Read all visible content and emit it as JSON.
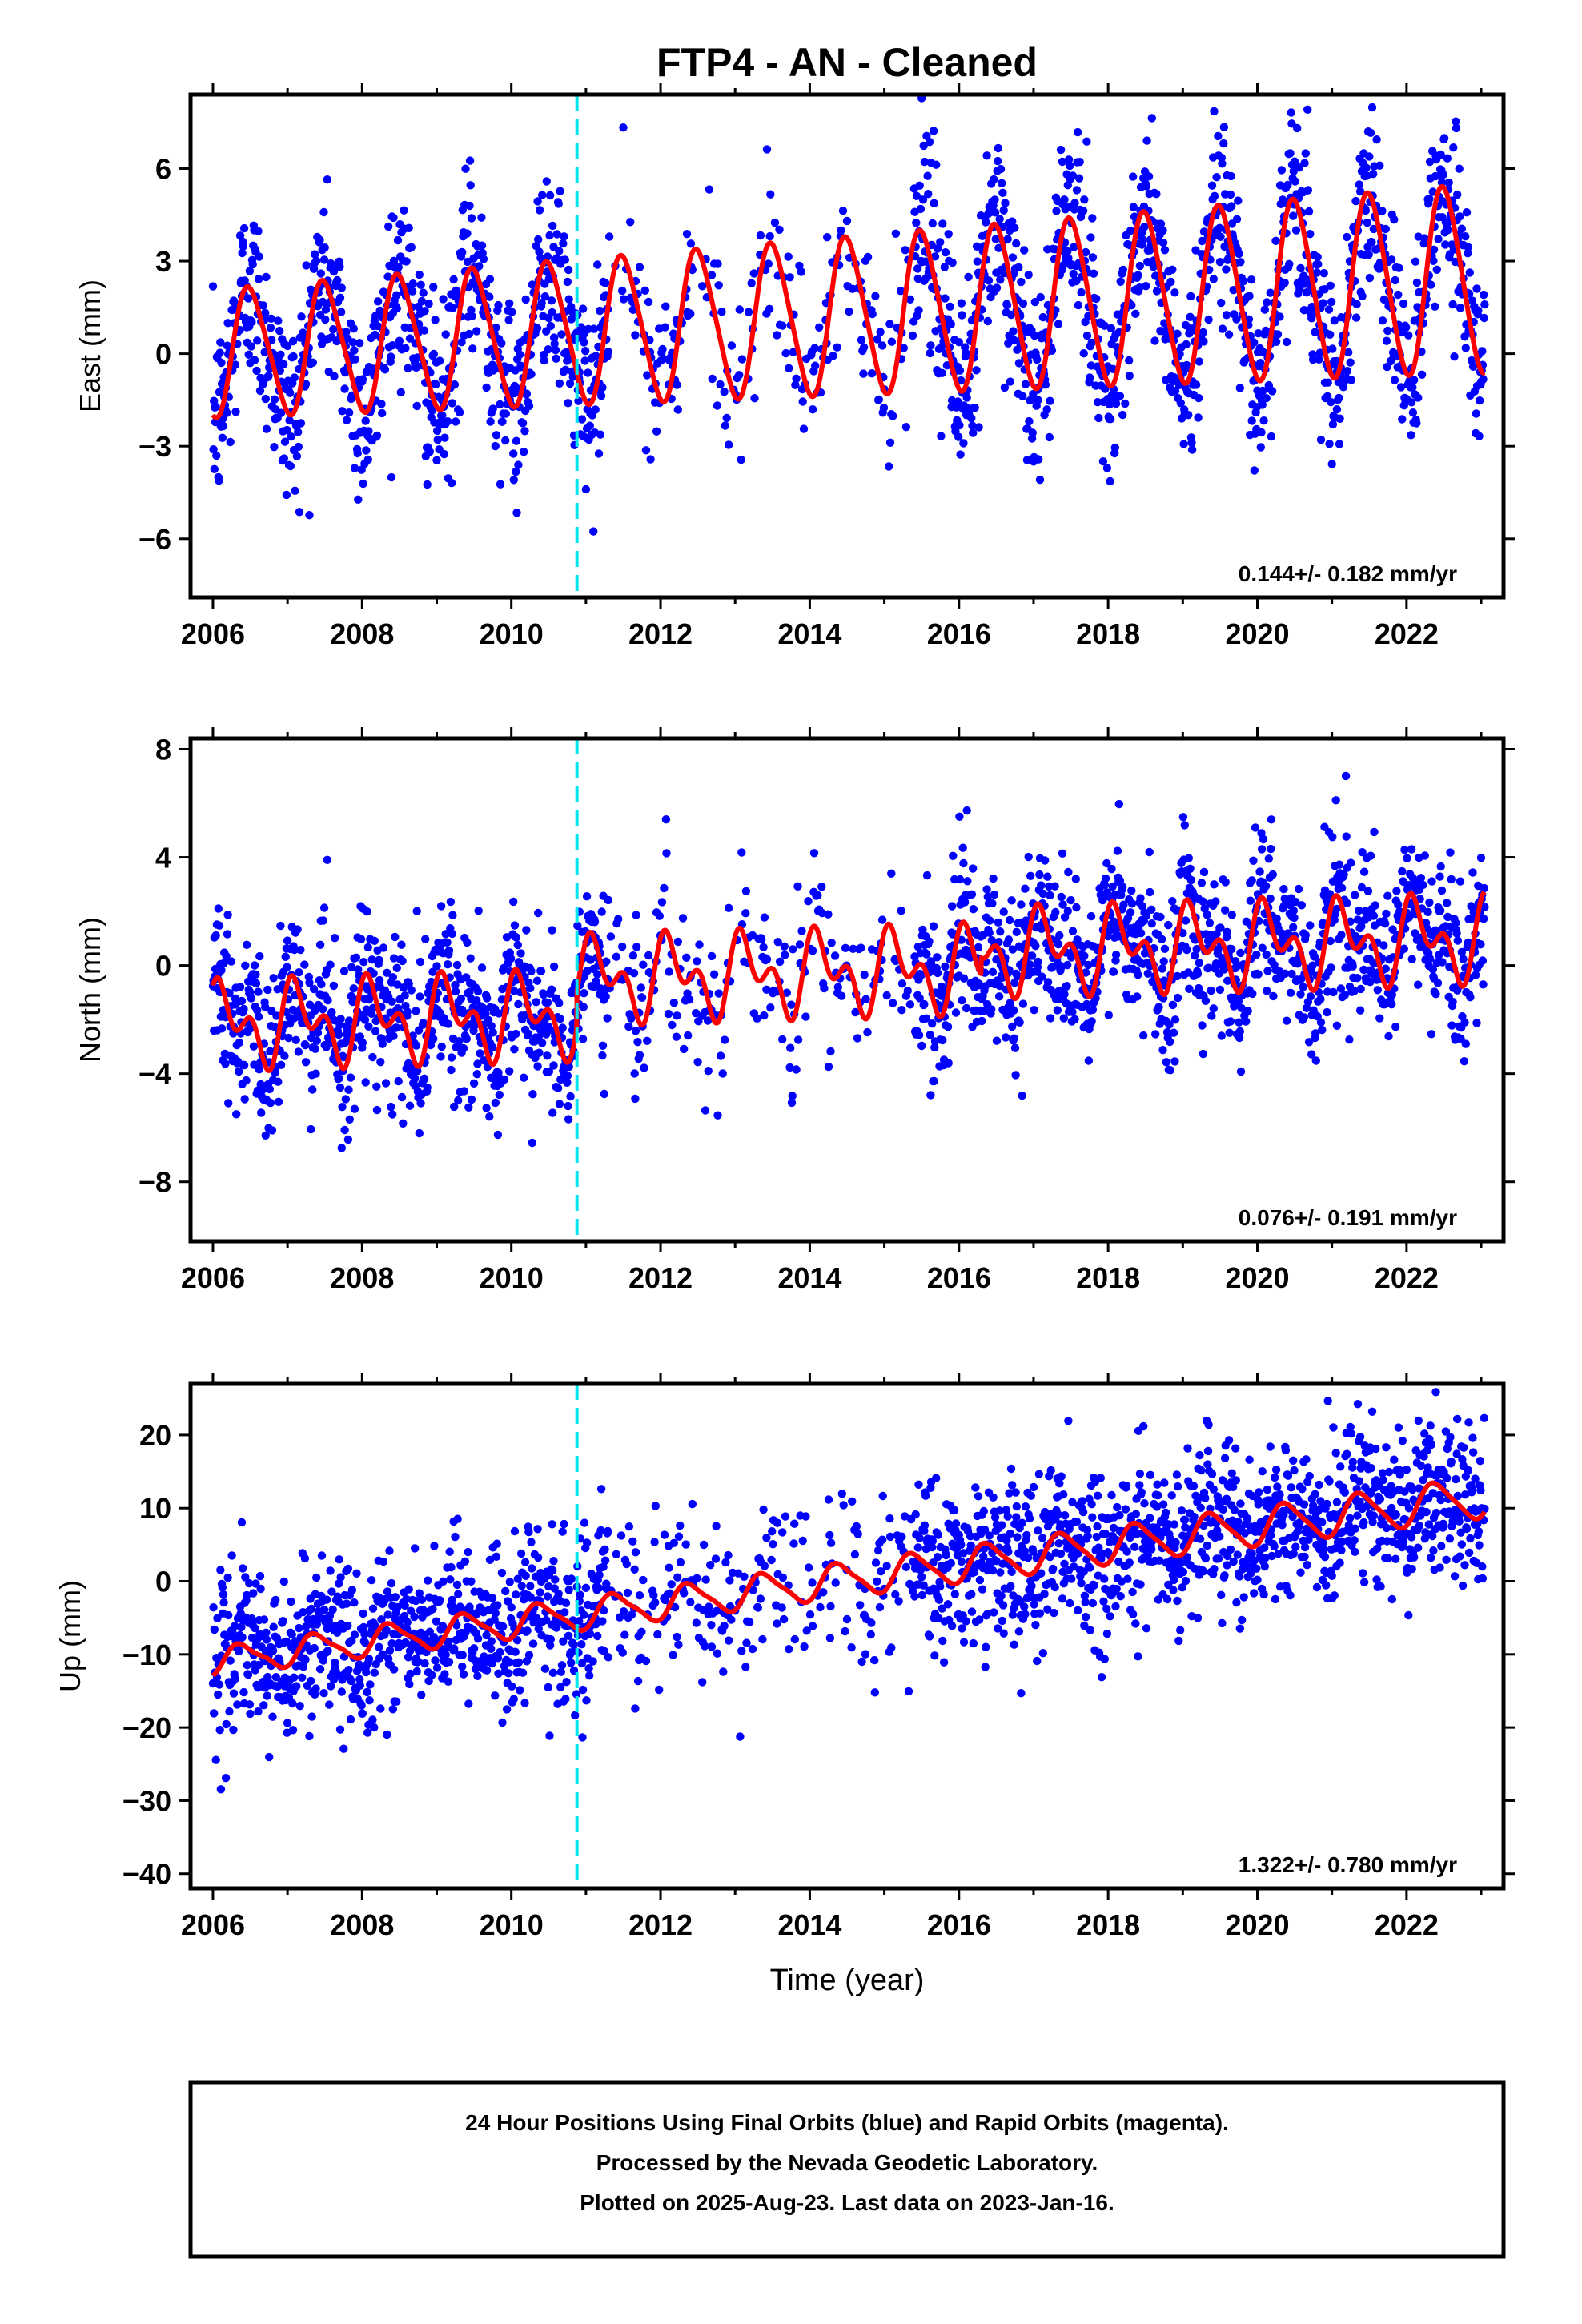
{
  "title": "FTP4  - AN - Cleaned",
  "xlabel": "Time (year)",
  "footer": {
    "line1": "24 Hour Positions Using Final Orbits (blue) and Rapid Orbits (magenta).",
    "line2": "Processed by the Nevada Geodetic Laboratory.",
    "line3": "Plotted on 2025-Aug-23. Last data on 2023-Jan-16."
  },
  "colors": {
    "points": "#0000ff",
    "model": "#ff0000",
    "event_line": "#00e5ee",
    "frame": "#000000"
  },
  "chart_data": [
    {
      "type": "scatter",
      "panel": "east",
      "ylabel": "East (mm)",
      "rate_text": "0.144+/- 0.182 mm/yr",
      "xlim": [
        2005.7,
        2023.3
      ],
      "ylim": [
        -7.9,
        8.4
      ],
      "xticks": [
        2006,
        2008,
        2010,
        2012,
        2014,
        2016,
        2018,
        2020,
        2022
      ],
      "yticks": [
        -6,
        -3,
        0,
        3,
        6
      ],
      "ytick_labels": [
        "−6",
        "−3",
        "0",
        "3",
        "6"
      ],
      "event_line_x": 2010.88,
      "model": {
        "offset": 0.0,
        "trend": 0.144,
        "amp_annual": 2.0,
        "amp_growth": 0.03,
        "phase": -1.6,
        "semi_amp": 0.3,
        "base_year": 2006
      },
      "points_model": {
        "noise": 1.5,
        "density_per_year": 150,
        "gaps": [
          [
            2011.3,
            2015.4
          ]
        ],
        "sparse_density": 12
      },
      "series": [
        {
          "name": "24 Hour Positions (Final Orbits)",
          "kind": "points"
        },
        {
          "name": "Model fit",
          "kind": "line"
        }
      ]
    },
    {
      "type": "scatter",
      "panel": "north",
      "ylabel": "North (mm)",
      "rate_text": "0.076+/- 0.191 mm/yr",
      "xlim": [
        2005.7,
        2023.3
      ],
      "ylim": [
        -10.2,
        8.4
      ],
      "xticks": [
        2006,
        2008,
        2010,
        2012,
        2014,
        2016,
        2018,
        2020,
        2022
      ],
      "yticks": [
        -8,
        -4,
        0,
        4,
        8
      ],
      "ytick_labels": [
        "−8",
        "−4",
        "0",
        "4",
        "8"
      ],
      "event_line_x": 2010.88,
      "model": {
        "offset": -2.2,
        "trend": 0.076,
        "amp_annual": 1.1,
        "amp_growth": 0.0,
        "phase": 0.6,
        "semi_amp": 0.9,
        "base_year": 2006,
        "step_at": 2010.88,
        "step": 1.3,
        "step2_at": 2016.3,
        "step2": 0.6
      },
      "points_model": {
        "noise": 1.5,
        "density_per_year": 150,
        "gaps": [
          [
            2011.3,
            2015.4
          ]
        ],
        "sparse_density": 12
      },
      "series": [
        {
          "name": "24 Hour Positions (Final Orbits)",
          "kind": "points"
        },
        {
          "name": "Model fit",
          "kind": "line"
        }
      ]
    },
    {
      "type": "scatter",
      "panel": "up",
      "ylabel": "Up (mm)",
      "rate_text": "1.322+/- 0.780 mm/yr",
      "xlim": [
        2005.7,
        2023.3
      ],
      "ylim": [
        -42,
        27
      ],
      "xticks": [
        2006,
        2008,
        2010,
        2012,
        2014,
        2016,
        2018,
        2020,
        2022
      ],
      "yticks": [
        -40,
        -30,
        -20,
        -10,
        0,
        10,
        20
      ],
      "ytick_labels": [
        "−40",
        "−30",
        "−20",
        "−10",
        "0",
        "10",
        "20"
      ],
      "event_line_x": 2010.88,
      "model": {
        "offset": -11.0,
        "trend": 1.322,
        "amp_annual": 1.8,
        "amp_growth": 0.03,
        "phase": -0.9,
        "semi_amp": 0.5,
        "base_year": 2006
      },
      "points_model": {
        "noise": 5.5,
        "density_per_year": 150,
        "gaps": [
          [
            2011.3,
            2015.4
          ]
        ],
        "sparse_density": 12
      },
      "series": [
        {
          "name": "24 Hour Positions (Final Orbits)",
          "kind": "points"
        },
        {
          "name": "Model fit",
          "kind": "line"
        }
      ]
    }
  ]
}
